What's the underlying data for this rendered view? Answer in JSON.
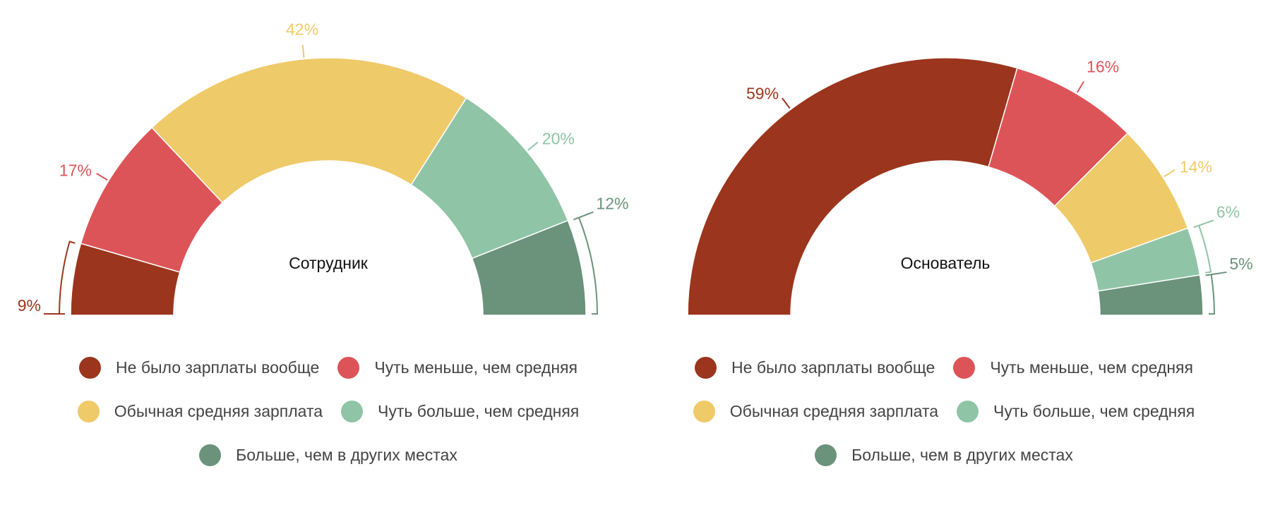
{
  "chart_data": [
    {
      "type": "pie",
      "title": "Сотрудник",
      "categories": [
        "Не было зарплаты вообще",
        "Чуть меньше, чем средняя",
        "Обычная средняя зарплата",
        "Чуть больше, чем средняя",
        "Больше, чем в других местах"
      ],
      "values": [
        9,
        17,
        42,
        20,
        12
      ],
      "labels": [
        "9%",
        "17%",
        "42%",
        "20%",
        "12%"
      ],
      "colors": [
        "#9b351d",
        "#dd5458",
        "#efca69",
        "#90c4a7",
        "#6b927b"
      ],
      "legend_position": "bottom"
    },
    {
      "type": "pie",
      "title": "Основатель",
      "categories": [
        "Не было зарплаты вообще",
        "Чуть меньше, чем средняя",
        "Обычная средняя зарплата",
        "Чуть больше, чем средняя",
        "Больше, чем в других местах"
      ],
      "values": [
        59,
        16,
        14,
        6,
        5
      ],
      "labels": [
        "59%",
        "16%",
        "14%",
        "6%",
        "5%"
      ],
      "colors": [
        "#9b351d",
        "#dd5458",
        "#efca69",
        "#90c4a7",
        "#6b927b"
      ],
      "legend_position": "bottom"
    }
  ],
  "legend": [
    {
      "rows": [
        [
          {
            "label": "Не было зарплаты вообще",
            "color": "#9b351d"
          },
          {
            "label": "Чуть меньше, чем средняя",
            "color": "#dd5458"
          }
        ],
        [
          {
            "label": "Обычная средняя зарплата",
            "color": "#efca69"
          },
          {
            "label": "Чуть больше, чем средняя",
            "color": "#90c4a7"
          }
        ],
        [
          {
            "label": "Больше, чем в других местах",
            "color": "#6b927b"
          }
        ]
      ]
    },
    {
      "rows": [
        [
          {
            "label": "Не было зарплаты вообще",
            "color": "#9b351d"
          },
          {
            "label": "Чуть меньше, чем средняя",
            "color": "#dd5458"
          }
        ],
        [
          {
            "label": "Обычная средняя зарплата",
            "color": "#efca69"
          },
          {
            "label": "Чуть больше, чем средняя",
            "color": "#90c4a7"
          }
        ],
        [
          {
            "label": "Больше, чем в других местах",
            "color": "#6b927b"
          }
        ]
      ]
    }
  ]
}
